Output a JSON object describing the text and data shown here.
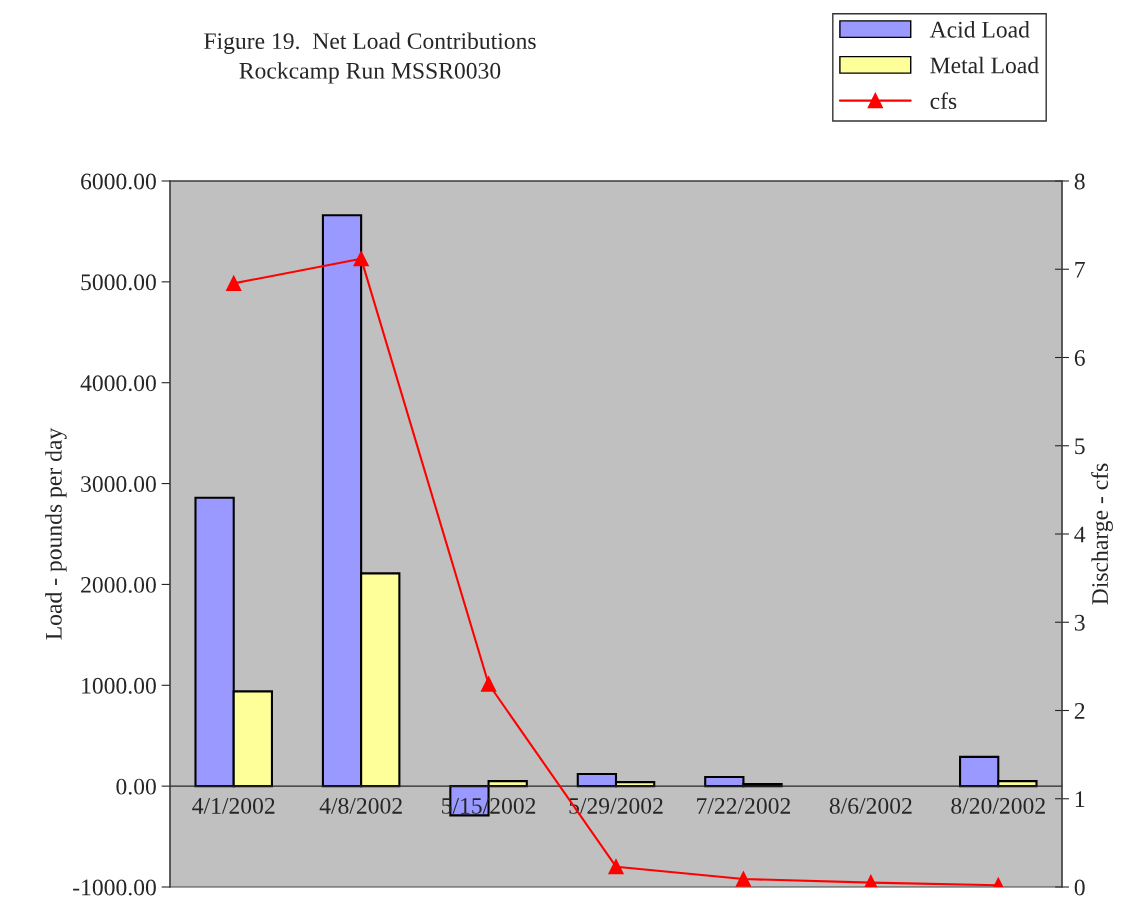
{
  "chart_data": {
    "type": "bar",
    "title": "Figure 19.  Net Load Contributions\nRockcamp Run MSSR0030",
    "ylabel": "Load - pounds per day",
    "y2label": "Discharge - cfs",
    "categories": [
      "4/1/2002",
      "4/8/2002",
      "5/15/2002",
      "5/29/2002",
      "7/22/2002",
      "8/6/2002",
      "8/20/2002"
    ],
    "series": [
      {
        "name": "Acid Load",
        "color": "#9999ff",
        "values": [
          2860,
          5660,
          -290,
          120,
          90,
          null,
          290
        ]
      },
      {
        "name": "Metal Load",
        "color": "#ffff99",
        "values": [
          940,
          2110,
          50,
          40,
          20,
          null,
          50
        ]
      },
      {
        "name": "cfs",
        "type": "line",
        "axis": "y2",
        "color": "#ff0000",
        "marker": "triangle",
        "values": [
          6.84,
          7.12,
          2.3,
          0.23,
          0.09,
          0.05,
          0.02
        ]
      }
    ],
    "ylim": [
      -1000,
      6000
    ],
    "yticks": [
      {
        "value": -1000,
        "label": "-1000.00"
      },
      {
        "value": 0,
        "label": "0.00"
      },
      {
        "value": 1000,
        "label": "1000.00"
      },
      {
        "value": 2000,
        "label": "2000.00"
      },
      {
        "value": 3000,
        "label": "3000.00"
      },
      {
        "value": 4000,
        "label": "4000.00"
      },
      {
        "value": 5000,
        "label": "5000.00"
      },
      {
        "value": 6000,
        "label": "6000.00"
      }
    ],
    "y2lim": [
      0,
      8
    ],
    "y2ticks": [
      0,
      1,
      2,
      3,
      4,
      5,
      6,
      7,
      8
    ],
    "grid": false,
    "legend": "top right"
  }
}
